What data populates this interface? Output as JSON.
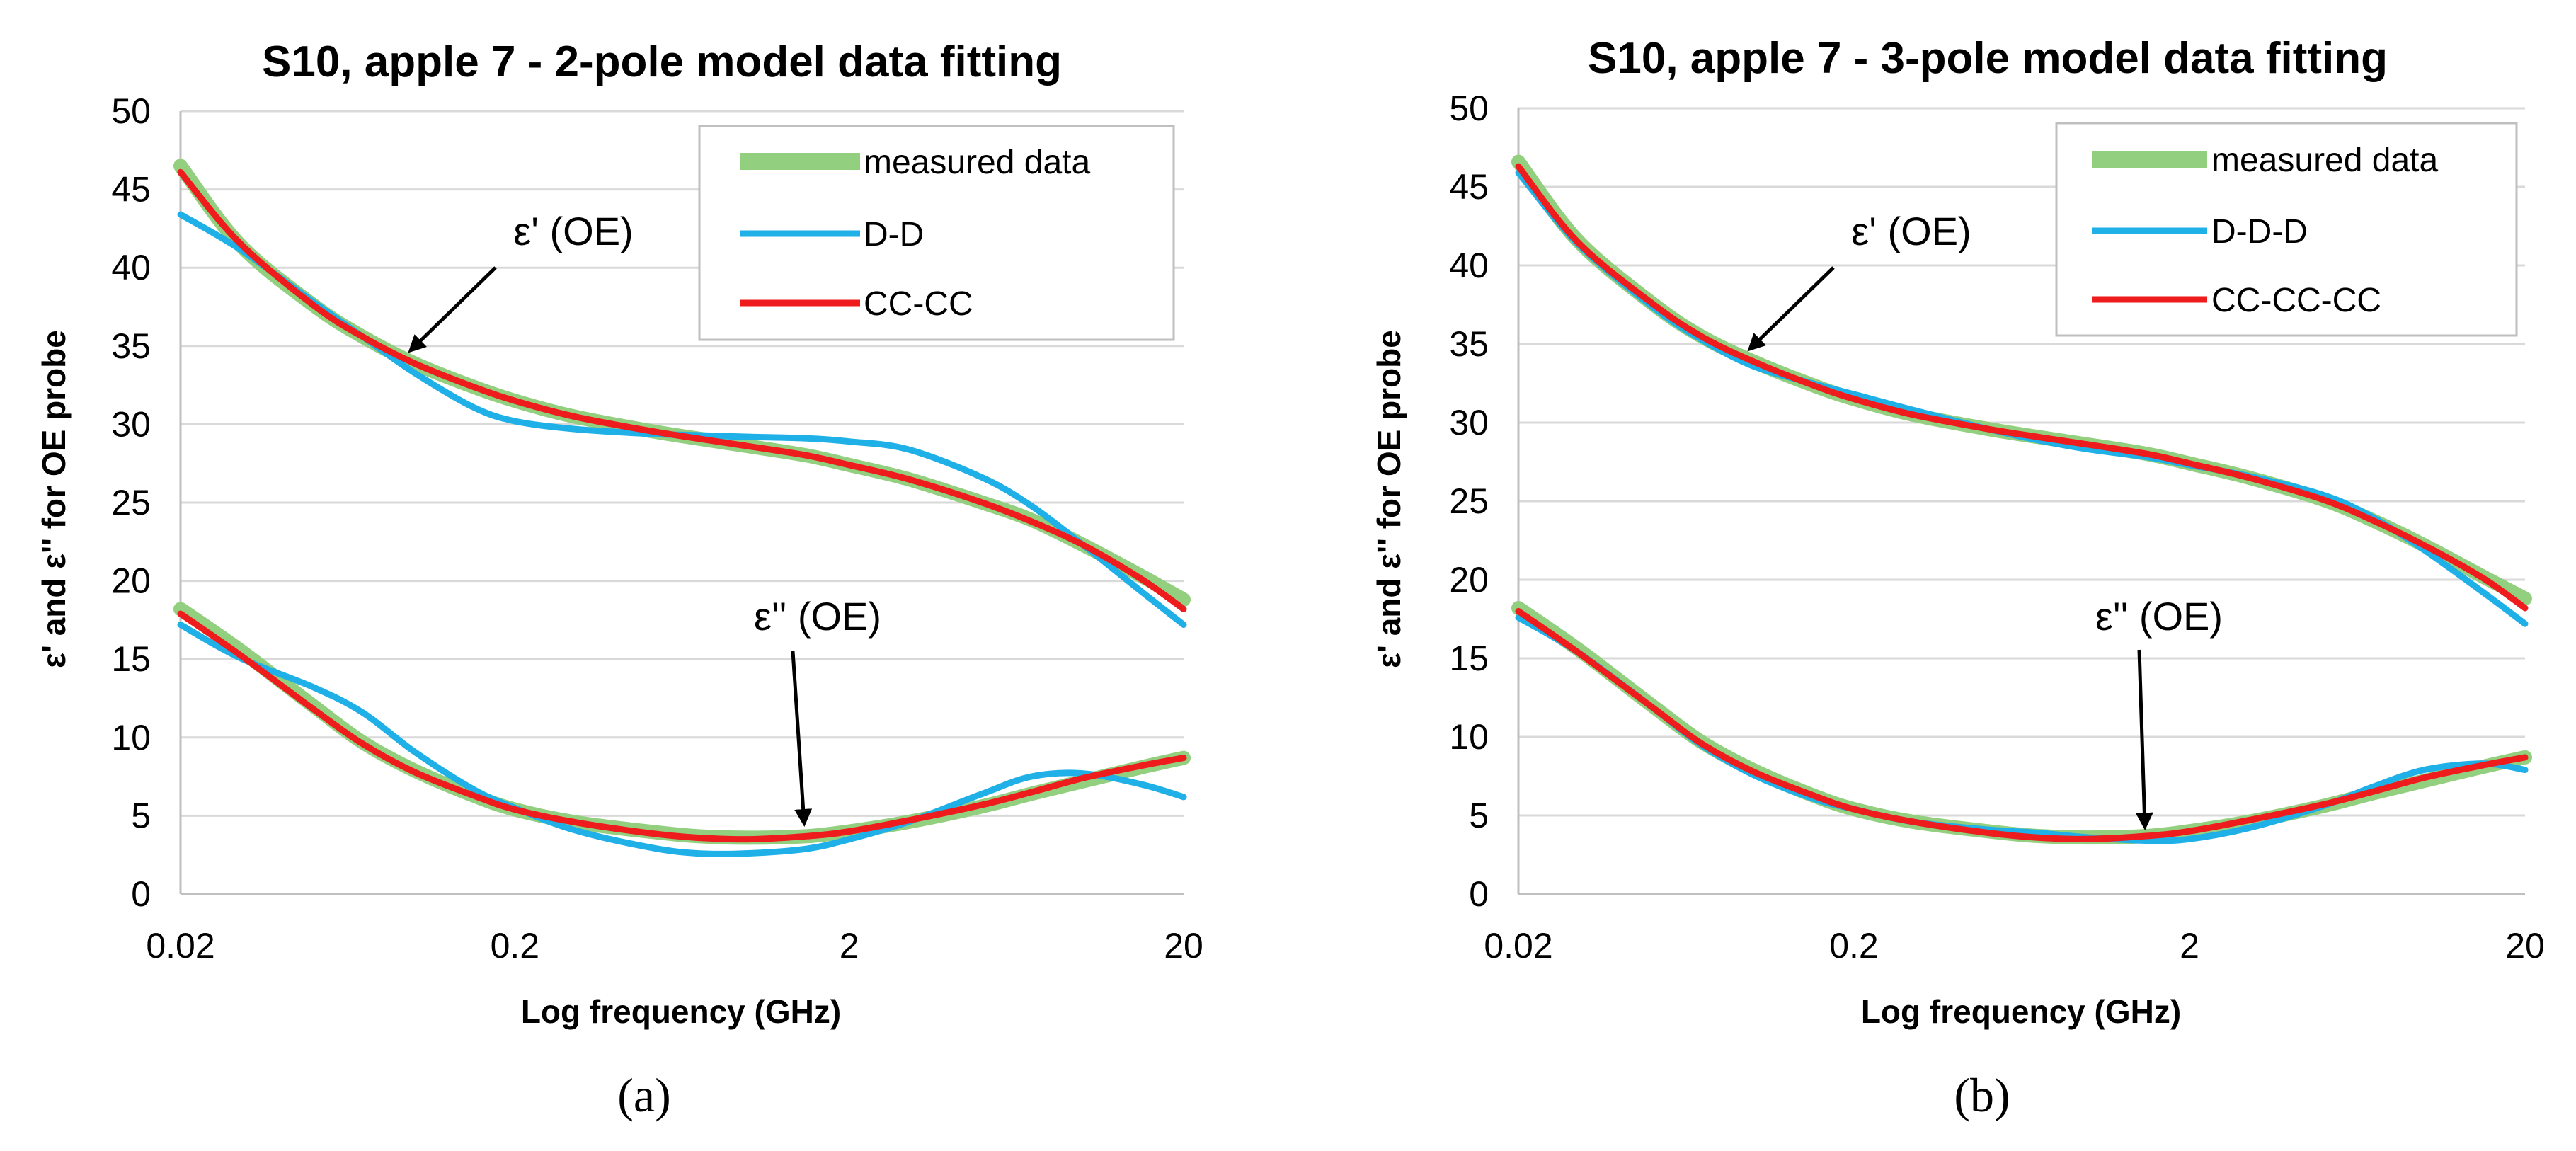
{
  "chart_data": [
    {
      "type": "line",
      "title": "S10, apple 7 - 2-pole model data fitting",
      "xlabel": "Log frequency (GHz)",
      "ylabel": "ε' and ε'' for OE probe",
      "xscale": "log",
      "xlim": [
        0.02,
        20
      ],
      "ylim": [
        0,
        50
      ],
      "xticks": [
        "0.02",
        "0.2",
        "2",
        "20"
      ],
      "yticks": [
        "0",
        "5",
        "10",
        "15",
        "20",
        "25",
        "30",
        "35",
        "40",
        "45",
        "50"
      ],
      "grid": "horizontal",
      "legend_position": "top-right",
      "legend": [
        "measured data",
        "D-D",
        "CC-CC"
      ],
      "annotations": [
        {
          "text": "ε' (OE)",
          "target_x": 0.07,
          "target_y": 34.5
        },
        {
          "text": "ε'' (OE)",
          "target_x": 1.5,
          "target_y": 4.0
        }
      ],
      "panel_label": "(a)",
      "series": [
        {
          "name": "measured data",
          "color": "#92cf7e",
          "role": "real",
          "x": [
            0.02,
            0.03,
            0.05,
            0.07,
            0.1,
            0.15,
            0.2,
            0.3,
            0.5,
            0.7,
            1,
            1.5,
            2,
            3,
            5,
            7,
            10,
            15,
            20
          ],
          "y": [
            46.5,
            41.5,
            37.6,
            35.6,
            33.9,
            32.4,
            31.5,
            30.5,
            29.6,
            29.1,
            28.6,
            28.0,
            27.4,
            26.5,
            25.0,
            23.9,
            22.3,
            20.3,
            18.8
          ]
        },
        {
          "name": "measured data",
          "color": "#92cf7e",
          "role": "imag",
          "x": [
            0.02,
            0.03,
            0.05,
            0.07,
            0.1,
            0.15,
            0.2,
            0.3,
            0.5,
            0.7,
            1,
            1.5,
            2,
            3,
            5,
            7,
            10,
            15,
            20
          ],
          "y": [
            18.2,
            15.6,
            12.0,
            9.7,
            7.9,
            6.3,
            5.4,
            4.6,
            4.0,
            3.7,
            3.6,
            3.7,
            4.0,
            4.6,
            5.6,
            6.4,
            7.2,
            8.1,
            8.7
          ]
        },
        {
          "name": "D-D",
          "color": "#1eb0e6",
          "role": "real",
          "x": [
            0.02,
            0.03,
            0.05,
            0.07,
            0.1,
            0.15,
            0.2,
            0.3,
            0.5,
            0.7,
            1,
            1.5,
            2,
            3,
            5,
            7,
            10,
            15,
            20
          ],
          "y": [
            43.4,
            41.2,
            37.8,
            35.6,
            33.3,
            31.1,
            30.2,
            29.7,
            29.4,
            29.3,
            29.2,
            29.1,
            28.9,
            28.4,
            26.6,
            24.8,
            22.3,
            19.3,
            17.2
          ]
        },
        {
          "name": "D-D",
          "color": "#1eb0e6",
          "role": "imag",
          "x": [
            0.02,
            0.03,
            0.05,
            0.07,
            0.1,
            0.15,
            0.2,
            0.3,
            0.5,
            0.7,
            1,
            1.5,
            2,
            3,
            5,
            7,
            10,
            15,
            20
          ],
          "y": [
            17.2,
            15.1,
            13.2,
            11.6,
            9.1,
            6.7,
            5.5,
            4.1,
            3.0,
            2.6,
            2.6,
            2.9,
            3.5,
            4.6,
            6.4,
            7.5,
            7.7,
            7.0,
            6.2
          ]
        },
        {
          "name": "CC-CC",
          "color": "#ee1c1c",
          "role": "real",
          "x": [
            0.02,
            0.03,
            0.05,
            0.07,
            0.1,
            0.15,
            0.2,
            0.3,
            0.5,
            0.7,
            1,
            1.5,
            2,
            3,
            5,
            7,
            10,
            15,
            20
          ],
          "y": [
            46.1,
            41.6,
            37.6,
            35.6,
            33.9,
            32.4,
            31.5,
            30.5,
            29.6,
            29.1,
            28.6,
            28.0,
            27.4,
            26.5,
            25.0,
            23.8,
            22.3,
            20.1,
            18.2
          ]
        },
        {
          "name": "CC-CC",
          "color": "#ee1c1c",
          "role": "imag",
          "x": [
            0.02,
            0.03,
            0.05,
            0.07,
            0.1,
            0.15,
            0.2,
            0.3,
            0.5,
            0.7,
            1,
            1.5,
            2,
            3,
            5,
            7,
            10,
            15,
            20
          ],
          "y": [
            17.9,
            15.3,
            11.8,
            9.6,
            7.8,
            6.3,
            5.4,
            4.6,
            3.9,
            3.6,
            3.5,
            3.7,
            4.0,
            4.7,
            5.7,
            6.5,
            7.4,
            8.2,
            8.7
          ]
        }
      ]
    },
    {
      "type": "line",
      "title": "S10, apple 7 - 3-pole model data fitting",
      "xlabel": "Log frequency (GHz)",
      "ylabel": "ε' and ε'' for OE probe",
      "xscale": "log",
      "xlim": [
        0.02,
        20
      ],
      "ylim": [
        0,
        50
      ],
      "xticks": [
        "0.02",
        "0.2",
        "2",
        "20"
      ],
      "yticks": [
        "0",
        "5",
        "10",
        "15",
        "20",
        "25",
        "30",
        "35",
        "40",
        "45",
        "50"
      ],
      "grid": "horizontal",
      "legend_position": "top-right",
      "legend": [
        "measured data",
        "D-D-D",
        "CC-CC-CC"
      ],
      "annotations": [
        {
          "text": "ε' (OE)",
          "target_x": 0.07,
          "target_y": 34.5
        },
        {
          "text": "ε'' (OE)",
          "target_x": 1.5,
          "target_y": 4.0
        }
      ],
      "panel_label": "(b)",
      "series": [
        {
          "name": "measured data",
          "color": "#92cf7e",
          "role": "real",
          "x": [
            0.02,
            0.03,
            0.05,
            0.07,
            0.1,
            0.15,
            0.2,
            0.3,
            0.5,
            0.7,
            1,
            1.5,
            2,
            3,
            5,
            7,
            10,
            15,
            20
          ],
          "y": [
            46.6,
            41.6,
            37.6,
            35.5,
            33.9,
            32.4,
            31.5,
            30.5,
            29.6,
            29.1,
            28.6,
            28.0,
            27.4,
            26.5,
            25.1,
            23.8,
            22.2,
            20.2,
            18.8
          ]
        },
        {
          "name": "measured data",
          "color": "#92cf7e",
          "role": "imag",
          "x": [
            0.02,
            0.03,
            0.05,
            0.07,
            0.1,
            0.15,
            0.2,
            0.3,
            0.5,
            0.7,
            1,
            1.5,
            2,
            3,
            5,
            7,
            10,
            15,
            20
          ],
          "y": [
            18.2,
            15.6,
            12.0,
            9.7,
            7.9,
            6.3,
            5.4,
            4.6,
            4.0,
            3.7,
            3.6,
            3.7,
            4.0,
            4.6,
            5.6,
            6.4,
            7.2,
            8.1,
            8.7
          ]
        },
        {
          "name": "D-D-D",
          "color": "#1eb0e6",
          "role": "real",
          "x": [
            0.02,
            0.03,
            0.05,
            0.07,
            0.1,
            0.15,
            0.2,
            0.3,
            0.5,
            0.7,
            1,
            1.5,
            2,
            3,
            5,
            7,
            10,
            15,
            20
          ],
          "y": [
            45.9,
            41.4,
            37.4,
            35.3,
            33.6,
            32.5,
            31.8,
            30.8,
            29.6,
            28.9,
            28.3,
            27.8,
            27.3,
            26.6,
            25.4,
            24.0,
            21.9,
            19.2,
            17.2
          ]
        },
        {
          "name": "D-D-D",
          "color": "#1eb0e6",
          "role": "imag",
          "x": [
            0.02,
            0.03,
            0.05,
            0.07,
            0.1,
            0.15,
            0.2,
            0.3,
            0.5,
            0.7,
            1,
            1.5,
            2,
            3,
            5,
            7,
            10,
            15,
            20
          ],
          "y": [
            17.6,
            15.4,
            11.9,
            9.5,
            7.6,
            6.1,
            5.4,
            4.6,
            4.1,
            3.9,
            3.6,
            3.4,
            3.5,
            4.2,
            5.6,
            6.8,
            7.9,
            8.3,
            7.9
          ]
        },
        {
          "name": "CC-CC-CC",
          "color": "#ee1c1c",
          "role": "real",
          "x": [
            0.02,
            0.03,
            0.05,
            0.07,
            0.1,
            0.15,
            0.2,
            0.3,
            0.5,
            0.7,
            1,
            1.5,
            2,
            3,
            5,
            7,
            10,
            15,
            20
          ],
          "y": [
            46.3,
            41.5,
            37.6,
            35.5,
            33.9,
            32.4,
            31.5,
            30.5,
            29.6,
            29.1,
            28.6,
            28.0,
            27.4,
            26.5,
            25.1,
            23.8,
            22.2,
            20.1,
            18.2
          ]
        },
        {
          "name": "CC-CC-CC",
          "color": "#ee1c1c",
          "role": "imag",
          "x": [
            0.02,
            0.03,
            0.05,
            0.07,
            0.1,
            0.15,
            0.2,
            0.3,
            0.5,
            0.7,
            1,
            1.5,
            2,
            3,
            5,
            7,
            10,
            15,
            20
          ],
          "y": [
            18.0,
            15.4,
            11.9,
            9.6,
            7.8,
            6.3,
            5.4,
            4.6,
            3.9,
            3.6,
            3.5,
            3.7,
            4.0,
            4.7,
            5.7,
            6.5,
            7.4,
            8.2,
            8.7
          ]
        }
      ]
    }
  ]
}
